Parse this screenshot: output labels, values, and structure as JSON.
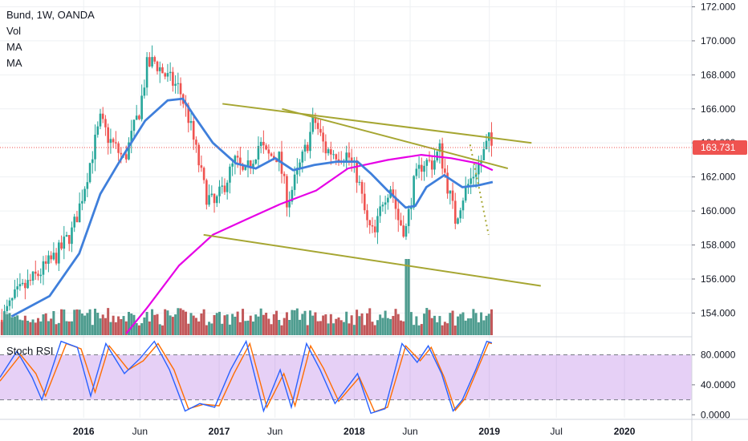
{
  "legend": {
    "symbol": "Bund, 1W, OANDA",
    "vol": "Vol",
    "ma1": "MA",
    "ma2": "MA"
  },
  "indicator": {
    "label": "Stoch RSI"
  },
  "colors": {
    "up": "#26a69a",
    "down": "#ef5350",
    "vol_up": "#4e9c8f",
    "vol_down": "#c2585a",
    "ma_short": "#3f7fdb",
    "ma_long": "#e600e6",
    "trendline": "#a6a632",
    "price_line": "#ef5350",
    "price_badge": "#ef5350",
    "rsi_k": "#2962ff",
    "rsi_d": "#ff6d00",
    "rsi_band": "#8e2bd8"
  },
  "chart_data": {
    "type": "candlestick",
    "title": "Bund, 1W, OANDA",
    "x_ticks": [
      {
        "label": "2016",
        "date": "2016-01-01"
      },
      {
        "label": "Jun",
        "date": "2016-06-01"
      },
      {
        "label": "2017",
        "date": "2017-01-01"
      },
      {
        "label": "Jun",
        "date": "2017-06-01"
      },
      {
        "label": "2018",
        "date": "2018-01-01"
      },
      {
        "label": "Jun",
        "date": "2018-06-01"
      },
      {
        "label": "2019",
        "date": "2019-01-01"
      },
      {
        "label": "Jul",
        "date": "2019-07-01"
      },
      {
        "label": "2020",
        "date": "2020-01-01"
      }
    ],
    "x_range": [
      "2015-05-20",
      "2020-07-01"
    ],
    "price_axis": {
      "ticks": [
        "154.000",
        "156.000",
        "158.000",
        "160.000",
        "162.000",
        "164.000",
        "166.000",
        "168.000",
        "170.000",
        "172.000"
      ],
      "range": [
        152.7,
        172.4
      ]
    },
    "last_price": "163.731",
    "close_path": [
      {
        "d": "2015-05-25",
        "p": 153.6
      },
      {
        "d": "2015-07-01",
        "p": 155.0
      },
      {
        "d": "2015-09-01",
        "p": 156.3
      },
      {
        "d": "2015-10-20",
        "p": 157.4
      },
      {
        "d": "2015-12-01",
        "p": 158.8
      },
      {
        "d": "2015-12-20",
        "p": 160.2
      },
      {
        "d": "2016-01-20",
        "p": 163.0
      },
      {
        "d": "2016-02-15",
        "p": 165.3
      },
      {
        "d": "2016-03-10",
        "p": 164.2
      },
      {
        "d": "2016-04-20",
        "p": 163.0
      },
      {
        "d": "2016-06-01",
        "p": 166.0
      },
      {
        "d": "2016-06-20",
        "p": 168.5
      },
      {
        "d": "2016-07-10",
        "p": 168.8
      },
      {
        "d": "2016-08-15",
        "p": 167.8
      },
      {
        "d": "2016-09-15",
        "p": 167.2
      },
      {
        "d": "2016-10-10",
        "p": 165.5
      },
      {
        "d": "2016-11-05",
        "p": 163.0
      },
      {
        "d": "2016-11-25",
        "p": 161.0
      },
      {
        "d": "2016-12-20",
        "p": 160.3
      },
      {
        "d": "2017-01-20",
        "p": 161.8
      },
      {
        "d": "2017-02-15",
        "p": 163.0
      },
      {
        "d": "2017-03-10",
        "p": 162.0
      },
      {
        "d": "2017-04-20",
        "p": 164.0
      },
      {
        "d": "2017-05-10",
        "p": 163.2
      },
      {
        "d": "2017-06-10",
        "p": 163.3
      },
      {
        "d": "2017-07-05",
        "p": 160.5
      },
      {
        "d": "2017-07-25",
        "p": 161.8
      },
      {
        "d": "2017-08-25",
        "p": 163.8
      },
      {
        "d": "2017-09-15",
        "p": 165.4
      },
      {
        "d": "2017-10-15",
        "p": 163.6
      },
      {
        "d": "2017-11-15",
        "p": 163.4
      },
      {
        "d": "2017-12-15",
        "p": 163.3
      },
      {
        "d": "2018-01-10",
        "p": 162.0
      },
      {
        "d": "2018-02-05",
        "p": 159.2
      },
      {
        "d": "2018-02-25",
        "p": 158.5
      },
      {
        "d": "2018-03-20",
        "p": 160.8
      },
      {
        "d": "2018-04-10",
        "p": 161.5
      },
      {
        "d": "2018-04-30",
        "p": 159.5
      },
      {
        "d": "2018-05-20",
        "p": 158.8
      },
      {
        "d": "2018-06-10",
        "p": 161.5
      },
      {
        "d": "2018-07-05",
        "p": 162.9
      },
      {
        "d": "2018-08-01",
        "p": 162.8
      },
      {
        "d": "2018-08-20",
        "p": 163.6
      },
      {
        "d": "2018-09-10",
        "p": 161.5
      },
      {
        "d": "2018-10-01",
        "p": 159.5
      },
      {
        "d": "2018-10-20",
        "p": 160.8
      },
      {
        "d": "2018-11-15",
        "p": 162.0
      },
      {
        "d": "2018-12-10",
        "p": 163.0
      },
      {
        "d": "2018-12-30",
        "p": 164.2
      },
      {
        "d": "2019-01-08",
        "p": 163.73
      }
    ],
    "ma_short": [
      {
        "d": "2015-06-20",
        "p": 153.8
      },
      {
        "d": "2015-10-01",
        "p": 155.0
      },
      {
        "d": "2015-12-20",
        "p": 157.5
      },
      {
        "d": "2016-02-15",
        "p": 161.0
      },
      {
        "d": "2016-04-15",
        "p": 163.2
      },
      {
        "d": "2016-06-15",
        "p": 165.3
      },
      {
        "d": "2016-08-15",
        "p": 166.5
      },
      {
        "d": "2016-09-25",
        "p": 166.6
      },
      {
        "d": "2016-10-25",
        "p": 165.6
      },
      {
        "d": "2016-12-15",
        "p": 164.0
      },
      {
        "d": "2017-02-15",
        "p": 162.8
      },
      {
        "d": "2017-04-10",
        "p": 162.5
      },
      {
        "d": "2017-06-01",
        "p": 163.1
      },
      {
        "d": "2017-07-20",
        "p": 162.4
      },
      {
        "d": "2017-09-15",
        "p": 162.7
      },
      {
        "d": "2017-11-15",
        "p": 162.9
      },
      {
        "d": "2018-01-10",
        "p": 162.9
      },
      {
        "d": "2018-02-15",
        "p": 162.2
      },
      {
        "d": "2018-04-01",
        "p": 161.2
      },
      {
        "d": "2018-05-20",
        "p": 160.2
      },
      {
        "d": "2018-06-15",
        "p": 160.3
      },
      {
        "d": "2018-07-15",
        "p": 161.4
      },
      {
        "d": "2018-09-01",
        "p": 162.1
      },
      {
        "d": "2018-10-20",
        "p": 161.4
      },
      {
        "d": "2018-12-01",
        "p": 161.5
      },
      {
        "d": "2019-01-10",
        "p": 161.7
      }
    ],
    "ma_long": [
      {
        "d": "2016-04-25",
        "p": 152.8
      },
      {
        "d": "2016-06-20",
        "p": 154.3
      },
      {
        "d": "2016-09-15",
        "p": 156.8
      },
      {
        "d": "2016-12-15",
        "p": 158.6
      },
      {
        "d": "2017-03-15",
        "p": 159.5
      },
      {
        "d": "2017-06-15",
        "p": 160.4
      },
      {
        "d": "2017-09-20",
        "p": 161.2
      },
      {
        "d": "2017-12-15",
        "p": 162.5
      },
      {
        "d": "2018-04-01",
        "p": 163.0
      },
      {
        "d": "2018-07-01",
        "p": 163.3
      },
      {
        "d": "2018-09-20",
        "p": 163.1
      },
      {
        "d": "2018-12-01",
        "p": 162.8
      },
      {
        "d": "2019-01-10",
        "p": 162.4
      }
    ],
    "trendlines": [
      {
        "from": {
          "d": "2017-01-10",
          "p": 166.3
        },
        "to": {
          "d": "2019-04-25",
          "p": 164.0
        },
        "style": "solid"
      },
      {
        "from": {
          "d": "2017-06-20",
          "p": 166.0
        },
        "to": {
          "d": "2019-02-20",
          "p": 162.5
        },
        "style": "solid"
      },
      {
        "from": {
          "d": "2016-11-20",
          "p": 158.6
        },
        "to": {
          "d": "2019-05-20",
          "p": 155.6
        },
        "style": "solid"
      },
      {
        "from": {
          "d": "2018-11-10",
          "p": 163.9
        },
        "to": {
          "d": "2018-12-30",
          "p": 158.6
        },
        "style": "dotted"
      }
    ],
    "stoch_rsi": {
      "ticks": [
        "0.0000",
        "40.0000",
        "80.0000"
      ],
      "range": [
        -4,
        102
      ],
      "bands": [
        20,
        80
      ],
      "k_path": [
        {
          "d": "2015-05-20",
          "v": 50
        },
        {
          "d": "2015-07-05",
          "v": 85
        },
        {
          "d": "2015-08-15",
          "v": 50
        },
        {
          "d": "2015-09-10",
          "v": 20
        },
        {
          "d": "2015-11-01",
          "v": 98
        },
        {
          "d": "2015-12-15",
          "v": 90
        },
        {
          "d": "2016-01-20",
          "v": 25
        },
        {
          "d": "2016-03-01",
          "v": 95
        },
        {
          "d": "2016-04-20",
          "v": 55
        },
        {
          "d": "2016-06-01",
          "v": 75
        },
        {
          "d": "2016-07-10",
          "v": 98
        },
        {
          "d": "2016-08-20",
          "v": 60
        },
        {
          "d": "2016-10-01",
          "v": 5
        },
        {
          "d": "2016-11-10",
          "v": 15
        },
        {
          "d": "2016-12-20",
          "v": 10
        },
        {
          "d": "2017-02-01",
          "v": 60
        },
        {
          "d": "2017-03-15",
          "v": 98
        },
        {
          "d": "2017-05-01",
          "v": 5
        },
        {
          "d": "2017-06-15",
          "v": 60
        },
        {
          "d": "2017-07-15",
          "v": 10
        },
        {
          "d": "2017-08-25",
          "v": 95
        },
        {
          "d": "2017-10-01",
          "v": 60
        },
        {
          "d": "2017-11-10",
          "v": 15
        },
        {
          "d": "2018-01-10",
          "v": 55
        },
        {
          "d": "2018-02-15",
          "v": 2
        },
        {
          "d": "2018-03-25",
          "v": 8
        },
        {
          "d": "2018-05-10",
          "v": 95
        },
        {
          "d": "2018-06-20",
          "v": 70
        },
        {
          "d": "2018-07-20",
          "v": 92
        },
        {
          "d": "2018-08-25",
          "v": 55
        },
        {
          "d": "2018-09-25",
          "v": 5
        },
        {
          "d": "2018-10-20",
          "v": 20
        },
        {
          "d": "2018-11-25",
          "v": 60
        },
        {
          "d": "2018-12-25",
          "v": 98
        },
        {
          "d": "2019-01-08",
          "v": 96
        }
      ],
      "d_path": [
        {
          "d": "2015-05-20",
          "v": 45
        },
        {
          "d": "2015-07-15",
          "v": 80
        },
        {
          "d": "2015-08-25",
          "v": 55
        },
        {
          "d": "2015-09-20",
          "v": 25
        },
        {
          "d": "2015-11-15",
          "v": 95
        },
        {
          "d": "2015-12-25",
          "v": 88
        },
        {
          "d": "2016-02-01",
          "v": 30
        },
        {
          "d": "2016-03-10",
          "v": 92
        },
        {
          "d": "2016-05-01",
          "v": 60
        },
        {
          "d": "2016-06-10",
          "v": 72
        },
        {
          "d": "2016-07-20",
          "v": 95
        },
        {
          "d": "2016-09-01",
          "v": 60
        },
        {
          "d": "2016-10-10",
          "v": 8
        },
        {
          "d": "2016-11-20",
          "v": 14
        },
        {
          "d": "2017-01-01",
          "v": 12
        },
        {
          "d": "2017-02-10",
          "v": 55
        },
        {
          "d": "2017-03-25",
          "v": 95
        },
        {
          "d": "2017-05-10",
          "v": 10
        },
        {
          "d": "2017-06-25",
          "v": 55
        },
        {
          "d": "2017-07-25",
          "v": 12
        },
        {
          "d": "2017-09-05",
          "v": 92
        },
        {
          "d": "2017-10-10",
          "v": 62
        },
        {
          "d": "2017-11-20",
          "v": 18
        },
        {
          "d": "2018-01-15",
          "v": 50
        },
        {
          "d": "2018-02-25",
          "v": 4
        },
        {
          "d": "2018-04-01",
          "v": 10
        },
        {
          "d": "2018-05-20",
          "v": 92
        },
        {
          "d": "2018-06-28",
          "v": 72
        },
        {
          "d": "2018-07-28",
          "v": 90
        },
        {
          "d": "2018-09-01",
          "v": 50
        },
        {
          "d": "2018-10-01",
          "v": 6
        },
        {
          "d": "2018-10-28",
          "v": 22
        },
        {
          "d": "2018-12-01",
          "v": 62
        },
        {
          "d": "2018-12-30",
          "v": 96
        },
        {
          "d": "2019-01-08",
          "v": 95
        }
      ]
    }
  }
}
